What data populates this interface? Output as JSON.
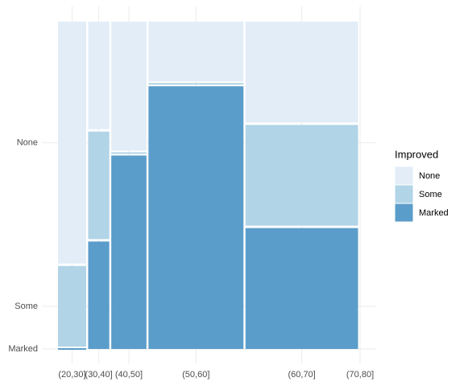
{
  "chart_data": {
    "type": "mosaic",
    "categories": [
      "(20,30]",
      "(30,40]",
      "(40,50]",
      "(50,60]",
      "(60,70]",
      "(70,80]"
    ],
    "legend_title": "Improved",
    "legend_position": "right",
    "grid": true,
    "series": [
      {
        "name": "None",
        "color": "#e2edf8",
        "values": [
          6,
          2,
          4,
          5,
          10,
          0
        ]
      },
      {
        "name": "Some",
        "color": "#b1d4e7",
        "values": [
          2,
          2,
          0,
          0,
          10,
          0
        ]
      },
      {
        "name": "Marked",
        "color": "#5b9dca",
        "values": [
          0,
          2,
          6,
          22,
          12,
          0
        ]
      }
    ]
  }
}
